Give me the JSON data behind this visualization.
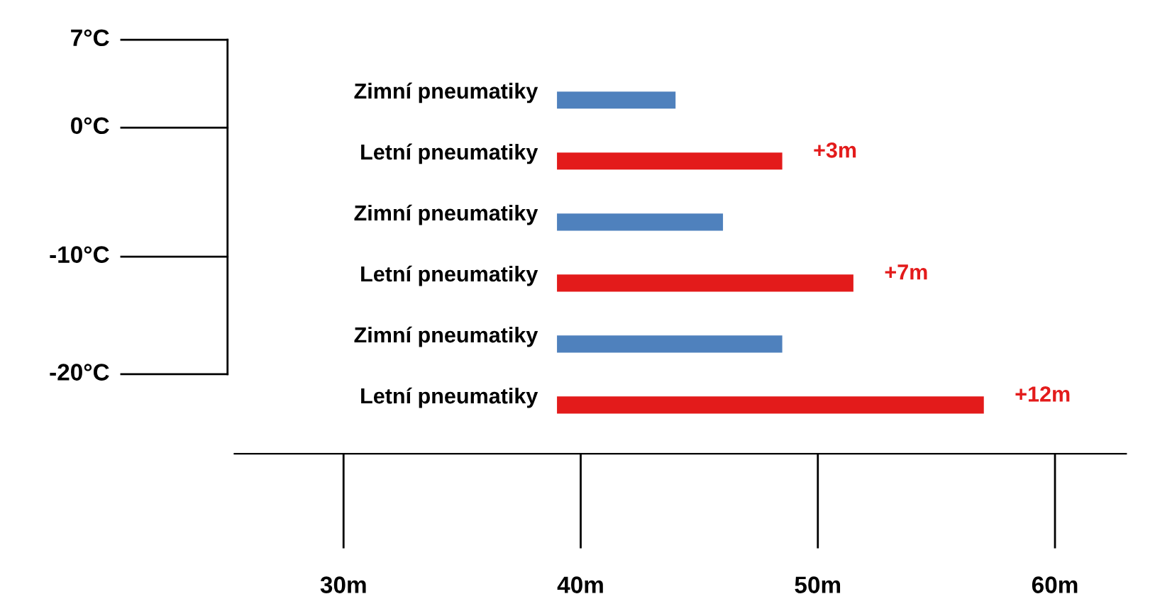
{
  "chart_data": {
    "type": "bar",
    "orientation": "horizontal",
    "categories": [
      "Zimní pneumatiky",
      "Letní pneumatiky",
      "Zimní pneumatiky",
      "Letní pneumatiky",
      "Zimní pneumatiky",
      "Letní pneumatiky"
    ],
    "base": [
      39,
      39,
      39,
      39,
      39,
      39
    ],
    "values": [
      5,
      9.5,
      7,
      12.5,
      9.5,
      18
    ],
    "colors": [
      "#4f81bd",
      "#e31b1b",
      "#4f81bd",
      "#e31b1b",
      "#4f81bd",
      "#e31b1b"
    ],
    "xlim": [
      25.4,
      63
    ],
    "xticks": [
      {
        "value": 30,
        "label": "30m"
      },
      {
        "value": 40,
        "label": "40m"
      },
      {
        "value": 50,
        "label": "50m"
      },
      {
        "value": 60,
        "label": "60m"
      }
    ],
    "annotations": [
      "7°C",
      "0°C",
      "-10°C",
      "-20°C",
      "+3m",
      "+7m",
      "+12m"
    ],
    "grid": false,
    "legend": false
  }
}
